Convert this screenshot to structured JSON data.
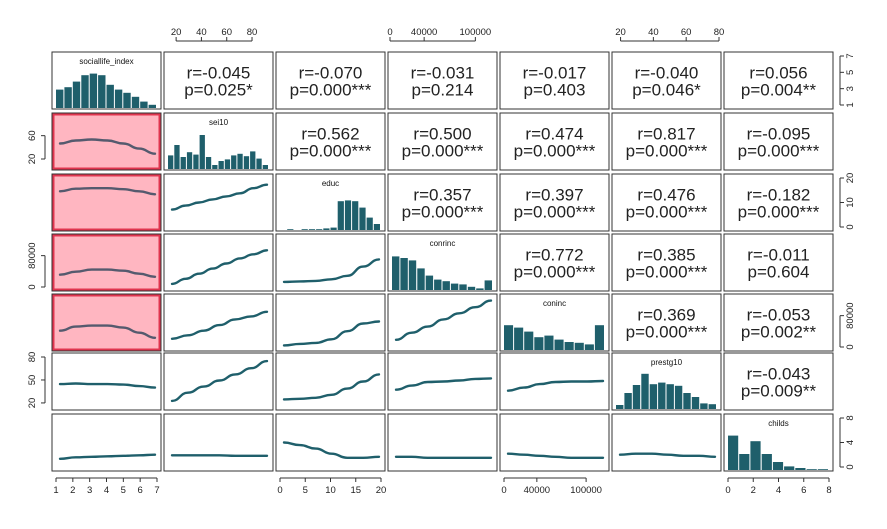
{
  "chart_data": {
    "type": "pairs",
    "variables": [
      "sociallife_index",
      "sei10",
      "educ",
      "conrinc",
      "coninc",
      "prestg10",
      "childs"
    ],
    "colors": {
      "bar": "#1f5f6b",
      "line": "#1f5f6b",
      "highlight_line": "#555a6e",
      "highlight_fill": "#ffb6c1",
      "highlight_border": "#e0354f"
    },
    "correlations": [
      {
        "row": 0,
        "col": 1,
        "r": "r=-0.045",
        "p": "p=0.025*"
      },
      {
        "row": 0,
        "col": 2,
        "r": "r=-0.070",
        "p": "p=0.000***"
      },
      {
        "row": 0,
        "col": 3,
        "r": "r=-0.031",
        "p": "p=0.214"
      },
      {
        "row": 0,
        "col": 4,
        "r": "r=-0.017",
        "p": "p=0.403"
      },
      {
        "row": 0,
        "col": 5,
        "r": "r=-0.040",
        "p": "p=0.046*"
      },
      {
        "row": 0,
        "col": 6,
        "r": "r=0.056",
        "p": "p=0.004**"
      },
      {
        "row": 1,
        "col": 2,
        "r": "r=0.562",
        "p": "p=0.000***"
      },
      {
        "row": 1,
        "col": 3,
        "r": "r=0.500",
        "p": "p=0.000***"
      },
      {
        "row": 1,
        "col": 4,
        "r": "r=0.474",
        "p": "p=0.000***"
      },
      {
        "row": 1,
        "col": 5,
        "r": "r=0.817",
        "p": "p=0.000***"
      },
      {
        "row": 1,
        "col": 6,
        "r": "r=-0.095",
        "p": "p=0.000***"
      },
      {
        "row": 2,
        "col": 3,
        "r": "r=0.357",
        "p": "p=0.000***"
      },
      {
        "row": 2,
        "col": 4,
        "r": "r=0.397",
        "p": "p=0.000***"
      },
      {
        "row": 2,
        "col": 5,
        "r": "r=0.476",
        "p": "p=0.000***"
      },
      {
        "row": 2,
        "col": 6,
        "r": "r=-0.182",
        "p": "p=0.000***"
      },
      {
        "row": 3,
        "col": 4,
        "r": "r=0.772",
        "p": "p=0.000***"
      },
      {
        "row": 3,
        "col": 5,
        "r": "r=0.385",
        "p": "p=0.000***"
      },
      {
        "row": 3,
        "col": 6,
        "r": "r=-0.011",
        "p": "p=0.604"
      },
      {
        "row": 4,
        "col": 5,
        "r": "r=0.369",
        "p": "p=0.000***"
      },
      {
        "row": 4,
        "col": 6,
        "r": "r=-0.053",
        "p": "p=0.002**"
      },
      {
        "row": 5,
        "col": 6,
        "r": "r=-0.043",
        "p": "p=0.009**"
      }
    ],
    "histograms": [
      {
        "var": "sociallife_index",
        "heights": [
          0.46,
          0.52,
          0.66,
          0.82,
          0.86,
          0.82,
          0.58,
          0.46,
          0.38,
          0.28,
          0.16,
          0.08
        ]
      },
      {
        "var": "sei10",
        "heights": [
          0.34,
          0.6,
          0.3,
          0.42,
          0.36,
          0.85,
          0.3,
          0.1,
          0.2,
          0.24,
          0.34,
          0.38,
          0.32,
          0.44,
          0.26,
          0.1
        ]
      },
      {
        "var": "educ",
        "heights": [
          0.0,
          0.01,
          0.0,
          0.01,
          0.01,
          0.02,
          0.04,
          0.06,
          0.72,
          0.74,
          0.72,
          0.56,
          0.31,
          0.15
        ]
      },
      {
        "var": "conrinc",
        "heights": [
          0.84,
          0.8,
          0.74,
          0.54,
          0.36,
          0.26,
          0.22,
          0.16,
          0.14,
          0.08,
          0.04,
          0.24
        ]
      },
      {
        "var": "coninc",
        "heights": [
          0.62,
          0.56,
          0.46,
          0.32,
          0.36,
          0.26,
          0.2,
          0.18,
          0.14,
          0.62
        ]
      },
      {
        "var": "prestg10",
        "heights": [
          0.1,
          0.4,
          0.6,
          0.88,
          0.62,
          0.66,
          0.62,
          0.58,
          0.4,
          0.3,
          0.14,
          0.12
        ]
      },
      {
        "var": "childs",
        "heights": [
          0.86,
          0.4,
          0.72,
          0.4,
          0.2,
          0.09,
          0.05,
          0.02,
          0.01
        ]
      }
    ],
    "smooth_curves": [
      {
        "row": 1,
        "col": 0,
        "highlight": true,
        "y": [
          0.46,
          0.52,
          0.54,
          0.52,
          0.46,
          0.36,
          0.26
        ]
      },
      {
        "row": 2,
        "col": 0,
        "highlight": true,
        "y": [
          0.72,
          0.77,
          0.78,
          0.78,
          0.76,
          0.72,
          0.66
        ]
      },
      {
        "row": 2,
        "col": 1,
        "y": [
          0.36,
          0.44,
          0.5,
          0.56,
          0.62,
          0.68,
          0.78,
          0.85
        ]
      },
      {
        "row": 3,
        "col": 0,
        "highlight": true,
        "y": [
          0.26,
          0.32,
          0.36,
          0.36,
          0.34,
          0.28,
          0.22
        ]
      },
      {
        "row": 3,
        "col": 1,
        "y": [
          0.08,
          0.18,
          0.28,
          0.38,
          0.48,
          0.58,
          0.66,
          0.74
        ]
      },
      {
        "row": 3,
        "col": 2,
        "y": [
          0.12,
          0.13,
          0.14,
          0.17,
          0.24,
          0.42,
          0.56
        ]
      },
      {
        "row": 4,
        "col": 0,
        "highlight": true,
        "y": [
          0.34,
          0.42,
          0.44,
          0.44,
          0.4,
          0.3,
          0.2
        ]
      },
      {
        "row": 4,
        "col": 1,
        "y": [
          0.18,
          0.25,
          0.34,
          0.45,
          0.56,
          0.62,
          0.71
        ]
      },
      {
        "row": 4,
        "col": 2,
        "y": [
          0.05,
          0.08,
          0.1,
          0.17,
          0.33,
          0.48,
          0.52
        ]
      },
      {
        "row": 4,
        "col": 3,
        "y": [
          0.16,
          0.3,
          0.42,
          0.56,
          0.68,
          0.8,
          0.93
        ]
      },
      {
        "row": 5,
        "col": 0,
        "y": [
          0.45,
          0.46,
          0.45,
          0.45,
          0.44,
          0.41,
          0.38
        ]
      },
      {
        "row": 5,
        "col": 1,
        "y": [
          0.12,
          0.28,
          0.4,
          0.52,
          0.64,
          0.76,
          0.9
        ]
      },
      {
        "row": 5,
        "col": 2,
        "y": [
          0.15,
          0.16,
          0.18,
          0.24,
          0.36,
          0.5,
          0.64
        ]
      },
      {
        "row": 5,
        "col": 3,
        "y": [
          0.34,
          0.42,
          0.49,
          0.5,
          0.52,
          0.55,
          0.56
        ]
      },
      {
        "row": 5,
        "col": 4,
        "y": [
          0.32,
          0.38,
          0.45,
          0.49,
          0.5,
          0.5,
          0.51
        ]
      },
      {
        "row": 6,
        "col": 0,
        "y": [
          0.18,
          0.21,
          0.22,
          0.23,
          0.24,
          0.25,
          0.26
        ]
      },
      {
        "row": 6,
        "col": 1,
        "y": [
          0.25,
          0.25,
          0.25,
          0.25,
          0.24,
          0.24,
          0.24
        ]
      },
      {
        "row": 6,
        "col": 2,
        "y": [
          0.5,
          0.45,
          0.38,
          0.28,
          0.2,
          0.2,
          0.22
        ]
      },
      {
        "row": 6,
        "col": 3,
        "y": [
          0.22,
          0.22,
          0.2,
          0.2,
          0.2,
          0.2,
          0.2
        ]
      },
      {
        "row": 6,
        "col": 4,
        "y": [
          0.28,
          0.26,
          0.24,
          0.22,
          0.2,
          0.2,
          0.2
        ]
      },
      {
        "row": 6,
        "col": 5,
        "y": [
          0.26,
          0.28,
          0.28,
          0.26,
          0.24,
          0.24,
          0.22
        ]
      }
    ],
    "axes": {
      "top": [
        {
          "col": 1,
          "ticks": [
            20,
            40,
            60,
            80
          ],
          "range": [
            12,
            95
          ]
        },
        {
          "col": 3,
          "ticks": [
            0,
            40000,
            100000
          ],
          "range": [
            0,
            123000
          ],
          "labels": [
            "0",
            "40000",
            "100000"
          ]
        },
        {
          "col": 5,
          "ticks": [
            20,
            40,
            60,
            80
          ],
          "range": [
            16,
            80
          ]
        }
      ],
      "bottom": [
        {
          "col": 0,
          "ticks": [
            1,
            2,
            3,
            4,
            5,
            6,
            7
          ],
          "range": [
            1,
            7
          ]
        },
        {
          "col": 2,
          "ticks": [
            0,
            5,
            10,
            15,
            20
          ],
          "range": [
            0,
            20
          ]
        },
        {
          "col": 4,
          "ticks": [
            0,
            40000,
            100000
          ],
          "range": [
            0,
            123000
          ],
          "labels": [
            "0",
            "40000",
            "100000"
          ]
        },
        {
          "col": 6,
          "ticks": [
            0,
            2,
            4,
            6,
            8
          ],
          "range": [
            0,
            8
          ]
        }
      ],
      "left": [
        {
          "row": 1,
          "ticks": [
            20,
            60
          ],
          "range": [
            8,
            92
          ],
          "labels": [
            "20",
            "60"
          ]
        },
        {
          "row": 3,
          "ticks": [
            0,
            80000
          ],
          "range": [
            0,
            125000
          ],
          "labels": [
            "0",
            "80000"
          ]
        },
        {
          "row": 5,
          "ticks": [
            20,
            50,
            80
          ],
          "range": [
            16,
            80
          ],
          "labels": [
            "20",
            "50",
            "80"
          ]
        }
      ],
      "right": [
        {
          "row": 0,
          "ticks": [
            1,
            3,
            5,
            7
          ],
          "range": [
            1,
            7
          ],
          "labels": [
            "1",
            "3",
            "5",
            "7"
          ]
        },
        {
          "row": 2,
          "ticks": [
            0,
            10,
            20
          ],
          "range": [
            0,
            20
          ],
          "labels": [
            "0",
            "10",
            "20"
          ]
        },
        {
          "row": 4,
          "ticks": [
            0,
            80000
          ],
          "range": [
            0,
            125000
          ],
          "labels": [
            "0",
            "80000"
          ]
        },
        {
          "row": 6,
          "ticks": [
            0,
            4,
            8
          ],
          "range": [
            0,
            8
          ],
          "labels": [
            "0",
            "4",
            "8"
          ]
        }
      ]
    }
  }
}
